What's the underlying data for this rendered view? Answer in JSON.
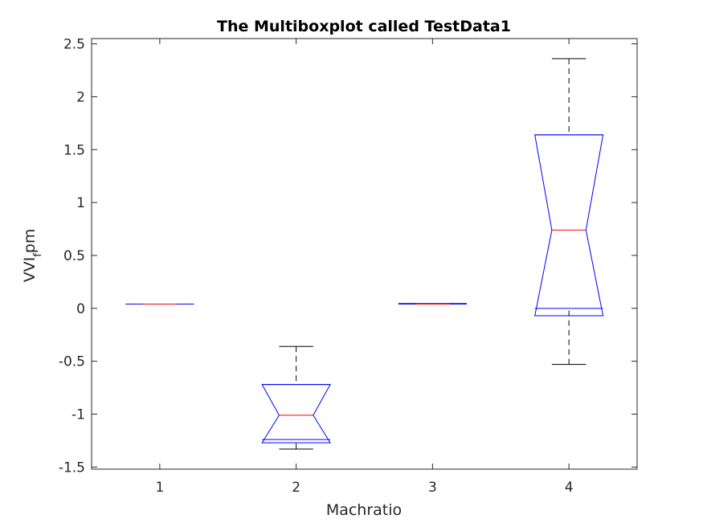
{
  "chart_data": {
    "type": "boxplot",
    "title": "The Multiboxplot called TestData1",
    "xlabel": "Machratio",
    "ylabel_main": "VVI",
    "ylabel_sub": "f",
    "ylabel_tail": "pm",
    "categories": [
      "1",
      "2",
      "3",
      "4"
    ],
    "ylim": [
      -1.52,
      2.55
    ],
    "xlim": [
      0.5,
      4.5
    ],
    "yticks": [
      -1.5,
      -1,
      -0.5,
      0,
      0.5,
      1,
      1.5,
      2,
      2.5
    ],
    "ytick_labels": [
      "-1.5",
      "-1",
      "-0.5",
      "0",
      "0.5",
      "1",
      "1.5",
      "2",
      "2.5"
    ],
    "notched": true,
    "boxes": [
      {
        "x": 1,
        "whisker_low": 0.04,
        "q1": 0.04,
        "median": 0.04,
        "q3": 0.04,
        "whisker_high": 0.04,
        "notch_low": 0.04,
        "notch_high": 0.04
      },
      {
        "x": 2,
        "whisker_low": -1.33,
        "q1": -1.24,
        "median": -1.01,
        "q3": -0.72,
        "whisker_high": -0.36,
        "notch_low": -1.27,
        "notch_high": -0.72
      },
      {
        "x": 3,
        "whisker_low": 0.04,
        "q1": 0.04,
        "median": 0.04,
        "q3": 0.045,
        "whisker_high": 0.045,
        "notch_low": 0.04,
        "notch_high": 0.045
      },
      {
        "x": 4,
        "whisker_low": -0.53,
        "q1": 0.0,
        "median": 0.74,
        "q3": 1.64,
        "whisker_high": 2.36,
        "notch_low": -0.07,
        "notch_high": 1.64
      }
    ],
    "colors": {
      "box": "#0000ff",
      "median": "#ff0000",
      "whisker": "#000000",
      "axis": "#262626"
    },
    "grid": false
  }
}
